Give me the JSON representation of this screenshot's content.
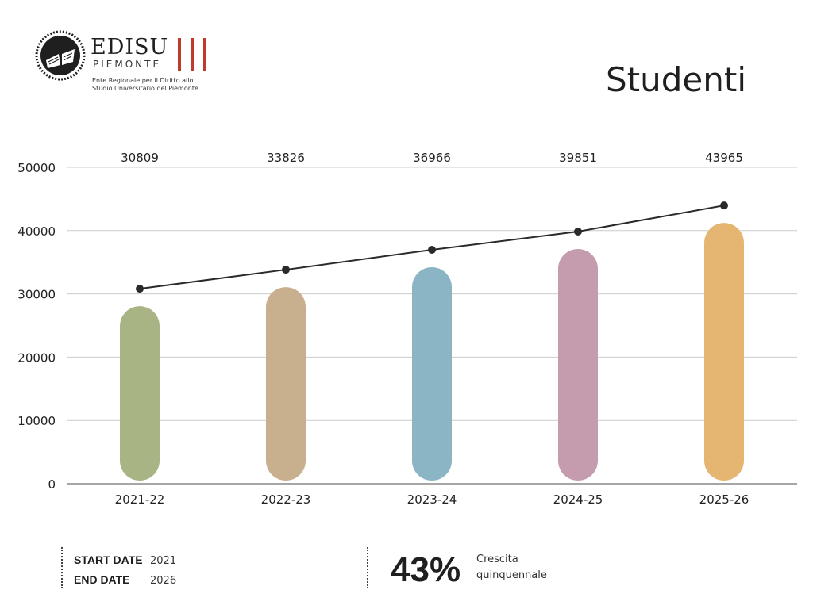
{
  "header": {
    "logo": {
      "name": "EDISU",
      "region": "PIEMONTE",
      "description_line1": "Ente Regionale per il Diritto allo",
      "description_line2": "Studio Universitario del Piemonte"
    },
    "title": "Studenti"
  },
  "chart_data": {
    "type": "bar",
    "title": "",
    "xlabel": "",
    "ylabel": "",
    "categories": [
      "2021-22",
      "2022-23",
      "2023-24",
      "2024-25",
      "2025-26"
    ],
    "series": [
      {
        "values": [
          30809,
          33826,
          36966,
          39851,
          43965
        ]
      }
    ],
    "overlay": "line",
    "data_labels": [
      "30809",
      "33826",
      "36966",
      "39851",
      "43965"
    ],
    "y_ticks": [
      0,
      10000,
      20000,
      30000,
      40000,
      50000
    ],
    "ylim": [
      0,
      50000
    ],
    "grid": true,
    "legend": "none",
    "bar_colors": [
      "#a9b485",
      "#c8b08e",
      "#8bb5c4",
      "#c49cad",
      "#e4b672"
    ],
    "line_color": "#2a2a2a"
  },
  "footer": {
    "start_label": "START DATE",
    "start_value": "2021",
    "end_label": "END DATE",
    "end_value": "2026",
    "growth_value": "43%",
    "growth_label_line1": "Crescita",
    "growth_label_line2": "quinquennale"
  },
  "colors": {
    "logo_bars": "#c0392b",
    "text": "#1f1f1f",
    "grid": "#cccccc"
  }
}
